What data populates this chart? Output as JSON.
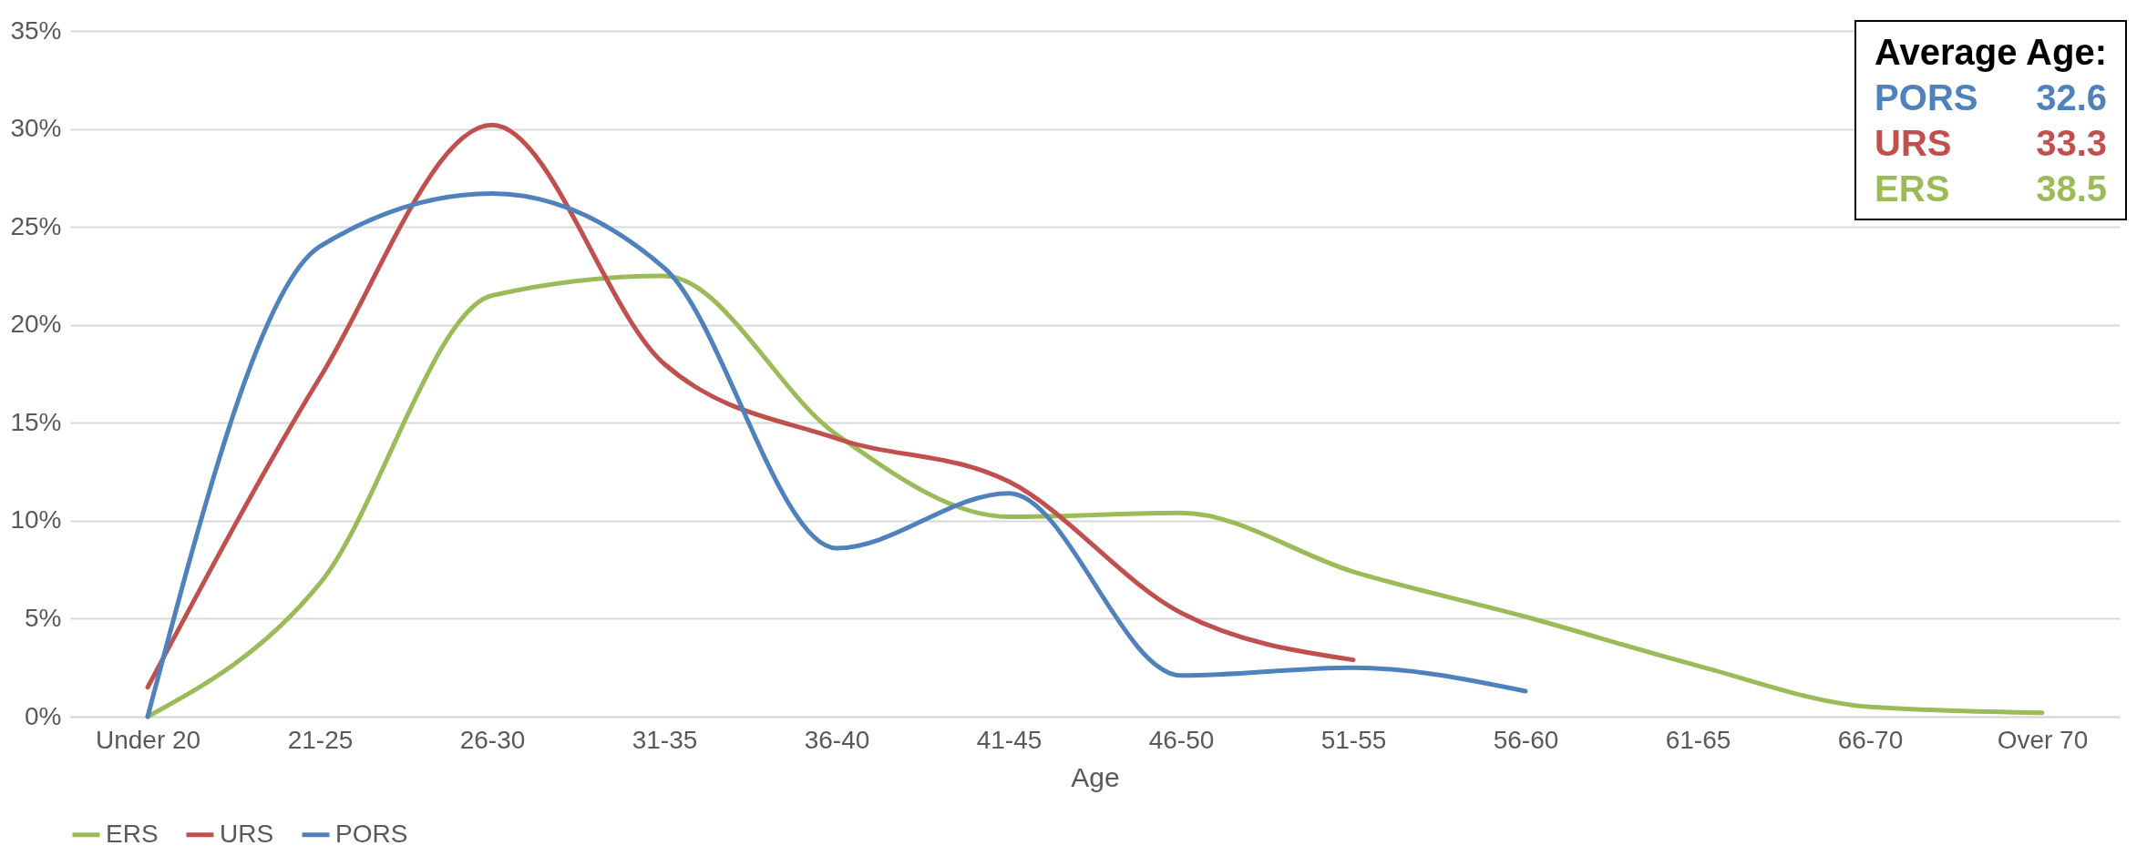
{
  "chart_data": {
    "type": "line",
    "xlabel": "Age",
    "categories": [
      "Under 20",
      "21-25",
      "26-30",
      "31-35",
      "36-40",
      "41-45",
      "46-50",
      "51-55",
      "56-60",
      "61-65",
      "66-70",
      "Over 70"
    ],
    "series": [
      {
        "name": "ERS",
        "color": "#9bbb59",
        "values": [
          0,
          6.8,
          21.5,
          22.5,
          14.4,
          10.2,
          10.4,
          7.4,
          5.1,
          2.6,
          0.5,
          0.2
        ]
      },
      {
        "name": "URS",
        "color": "#c0504d",
        "values": [
          1.5,
          17.3,
          30.2,
          18,
          14.2,
          12,
          5.3,
          2.9,
          null,
          null,
          null,
          null
        ]
      },
      {
        "name": "PORS",
        "color": "#4f81bd",
        "values": [
          0,
          24,
          26.7,
          22.9,
          8.6,
          11.4,
          2.1,
          2.5,
          1.3,
          null,
          null,
          null
        ]
      }
    ],
    "ylim": [
      0,
      35
    ],
    "yticks": [
      {
        "value": 0,
        "label": "0%"
      },
      {
        "value": 5,
        "label": "5%"
      },
      {
        "value": 10,
        "label": "10%"
      },
      {
        "value": 15,
        "label": "15%"
      },
      {
        "value": 20,
        "label": "20%"
      },
      {
        "value": 25,
        "label": "25%"
      },
      {
        "value": 30,
        "label": "30%"
      },
      {
        "value": 35,
        "label": "35%"
      }
    ],
    "grid": "y",
    "legend": "bottom",
    "marker": "none",
    "line_style": "solid",
    "annotations": [
      "Average Age:",
      "PORS 32.6",
      "URS 33.3",
      "ERS 38.5"
    ]
  }
}
